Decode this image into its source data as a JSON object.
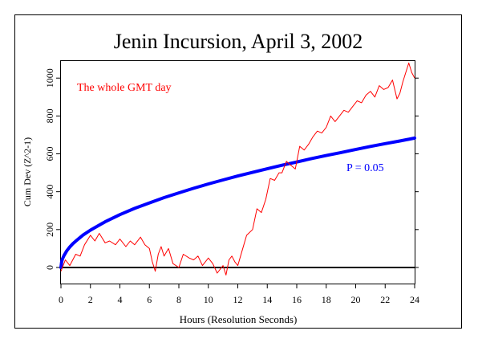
{
  "chart_data": {
    "type": "line",
    "title": "Jenin Incursion, April 3, 2002",
    "xlabel": "Hours (Resolution Seconds)",
    "ylabel": "Cum Dev (Z^2-1)",
    "xlim": [
      0,
      24
    ],
    "ylim": [
      -85,
      1090
    ],
    "xticks": [
      0,
      2,
      4,
      6,
      8,
      10,
      12,
      14,
      16,
      18,
      20,
      22,
      24
    ],
    "yticks": [
      0,
      200,
      400,
      600,
      800,
      1000
    ],
    "annotations": [
      {
        "text": "The whole GMT day",
        "color": "#ff0000"
      },
      {
        "text": "P = 0.05",
        "color": "#0000ff"
      }
    ],
    "series": [
      {
        "color": "#ff0000",
        "x": [
          0,
          0.3,
          0.6,
          1.0,
          1.3,
          1.6,
          2.0,
          2.3,
          2.6,
          3.0,
          3.3,
          3.7,
          4.0,
          4.4,
          4.7,
          5.0,
          5.4,
          5.7,
          6.0,
          6.2,
          6.4,
          6.6,
          6.8,
          7.0,
          7.3,
          7.6,
          8.0,
          8.3,
          8.7,
          9.0,
          9.3,
          9.6,
          10.0,
          10.3,
          10.6,
          11.0,
          11.2,
          11.4,
          11.6,
          11.8,
          12.0,
          12.3,
          12.6,
          13.0,
          13.3,
          13.6,
          13.9,
          14.2,
          14.5,
          14.8,
          15.0,
          15.3,
          15.6,
          15.9,
          16.2,
          16.5,
          16.8,
          17.1,
          17.4,
          17.7,
          18.0,
          18.3,
          18.6,
          18.9,
          19.2,
          19.5,
          19.8,
          20.1,
          20.4,
          20.7,
          21.0,
          21.3,
          21.6,
          21.9,
          22.2,
          22.5,
          22.8,
          23.0,
          23.2,
          23.4,
          23.6,
          23.8,
          24.0
        ],
        "y": [
          -20,
          40,
          10,
          70,
          60,
          120,
          170,
          140,
          180,
          130,
          140,
          120,
          150,
          110,
          140,
          120,
          160,
          120,
          100,
          30,
          -20,
          70,
          110,
          60,
          100,
          20,
          0,
          70,
          50,
          40,
          60,
          10,
          50,
          20,
          -30,
          10,
          -40,
          40,
          60,
          30,
          10,
          90,
          170,
          200,
          310,
          290,
          360,
          470,
          460,
          500,
          500,
          560,
          540,
          520,
          640,
          620,
          650,
          690,
          720,
          710,
          740,
          800,
          770,
          800,
          830,
          820,
          850,
          880,
          870,
          910,
          930,
          900,
          960,
          940,
          950,
          990,
          890,
          920,
          980,
          1030,
          1080,
          1030,
          1000
        ]
      },
      {
        "color": "#0000ff",
        "x": [
          0,
          0.05,
          0.1,
          0.2,
          0.4,
          0.6,
          0.8,
          1,
          1.5,
          2,
          3,
          4,
          5,
          6,
          7,
          8,
          9,
          10,
          11,
          12,
          13,
          14,
          15,
          16,
          17,
          18,
          19,
          20,
          21,
          22,
          23,
          24
        ],
        "y": [
          0,
          31,
          44,
          62,
          88,
          108,
          125,
          139,
          171,
          197,
          241,
          279,
          312,
          341,
          369,
          394,
          418,
          441,
          462,
          483,
          502,
          521,
          540,
          557,
          575,
          591,
          607,
          623,
          639,
          654,
          668,
          683
        ]
      }
    ],
    "reference_line": {
      "y": 0,
      "color": "#000000"
    }
  }
}
